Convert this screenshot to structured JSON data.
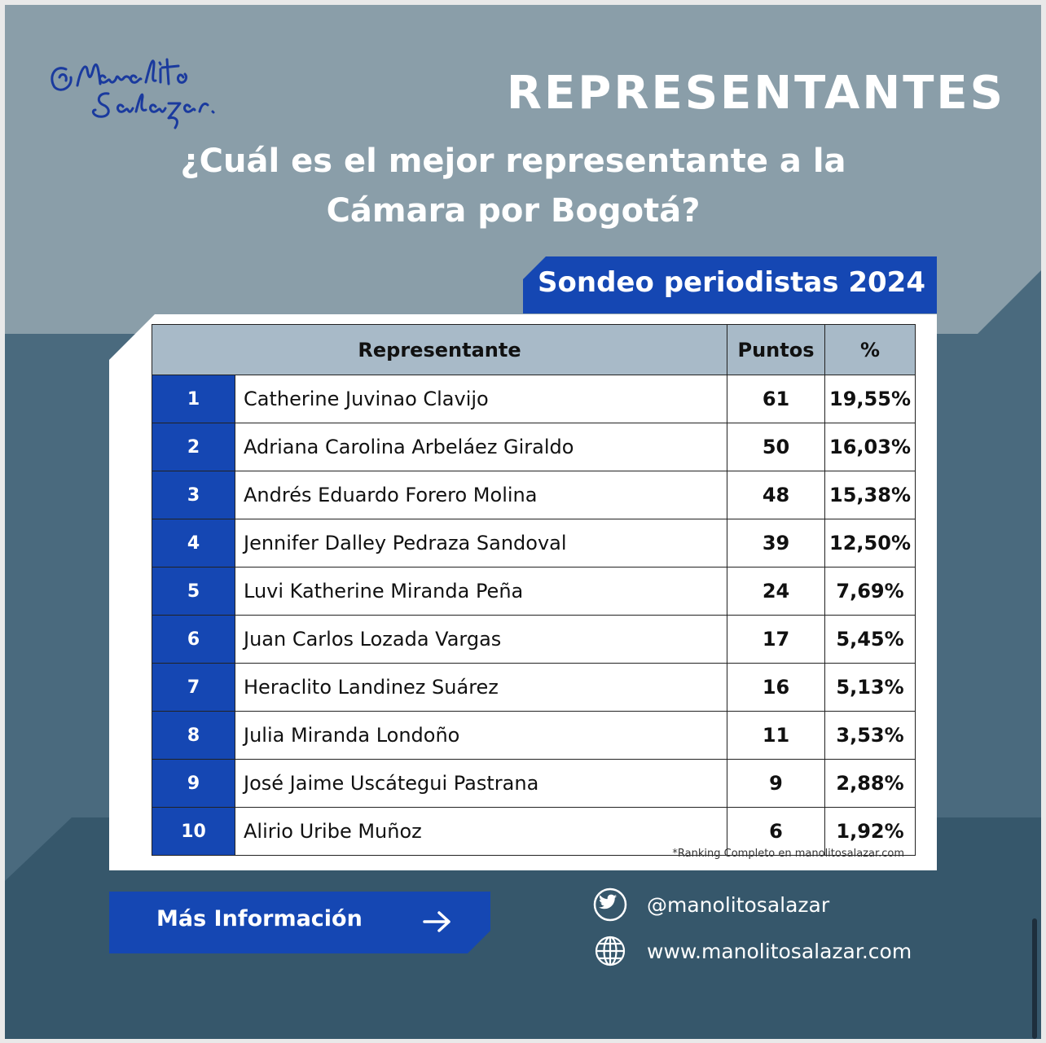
{
  "header": {
    "brand": "Manolito Salazar",
    "title": "REPRESENTANTES",
    "question_line1": "¿Cuál es el mejor representante a la",
    "question_line2": "Cámara por Bogotá?",
    "tag": "Sondeo periodistas 2024"
  },
  "table": {
    "columns": [
      "Representante",
      "Puntos",
      "%"
    ],
    "rows": [
      {
        "rank": "1",
        "name": "Catherine Juvinao Clavijo",
        "points": "61",
        "pct": "19,55%"
      },
      {
        "rank": "2",
        "name": "Adriana Carolina Arbeláez Giraldo",
        "points": "50",
        "pct": "16,03%"
      },
      {
        "rank": "3",
        "name": "Andrés Eduardo Forero Molina",
        "points": "48",
        "pct": "15,38%"
      },
      {
        "rank": "4",
        "name": "Jennifer Dalley Pedraza Sandoval",
        "points": "39",
        "pct": "12,50%"
      },
      {
        "rank": "5",
        "name": "Luvi Katherine Miranda Peña",
        "points": "24",
        "pct": "7,69%"
      },
      {
        "rank": "6",
        "name": "Juan Carlos Lozada Vargas",
        "points": "17",
        "pct": "5,45%"
      },
      {
        "rank": "7",
        "name": "Heraclito Landinez Suárez",
        "points": "16",
        "pct": "5,13%"
      },
      {
        "rank": "8",
        "name": "Julia Miranda Londoño",
        "points": "11",
        "pct": "3,53%"
      },
      {
        "rank": "9",
        "name": "José Jaime Uscátegui Pastrana",
        "points": "9",
        "pct": "2,88%"
      },
      {
        "rank": "10",
        "name": "Alirio Uribe Muñoz",
        "points": "6",
        "pct": "1,92%"
      }
    ],
    "footnote": "*Ranking Completo en manolitosalazar.com"
  },
  "cta": {
    "label": "Más Información",
    "icon": "arrow-right-icon"
  },
  "social": {
    "twitter_handle": "@manolitosalazar",
    "twitter_icon": "twitter-icon",
    "website": "www.manolitosalazar.com",
    "website_icon": "globe-icon"
  },
  "colors": {
    "brand_blue": "#1547b3",
    "bg_top": "#8a9ea9",
    "bg_mid": "#4a6a7e",
    "bg_bottom": "#36576b",
    "header_row": "#a8bac8"
  }
}
